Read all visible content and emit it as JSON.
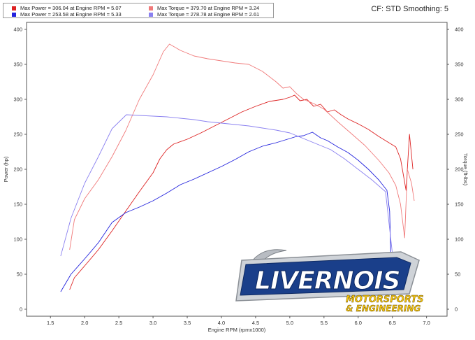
{
  "header": {
    "cf_label": "CF: STD Smoothing: 5"
  },
  "legend": [
    {
      "text": "Max Power = 306.04 at Engine RPM = 5.07",
      "color": "#dd2222"
    },
    {
      "text": "Max Power = 253.58 at Engine RPM = 5.33",
      "color": "#2222dd"
    },
    {
      "text": "Max Torque = 379.70 at Engine RPM = 3.24",
      "color": "#f07a7a"
    },
    {
      "text": "Max Torque = 278.78 at Engine RPM = 2.61",
      "color": "#8a80f0"
    }
  ],
  "watermark": {
    "line1": "LIVERNOIS",
    "line2": "MOTORSPORTS",
    "line3": "& ENGINEERING"
  },
  "chart_data": {
    "type": "line",
    "xlabel": "Engine RPM (rpmx1000)",
    "ylabel": "Power (hp)",
    "y2label": "Torque (ft-lbs)",
    "xlim": [
      1.15,
      7.3
    ],
    "ylim": [
      -10,
      410
    ],
    "y2lim": [
      -10,
      410
    ],
    "x_ticks": [
      "1.5",
      "2.0",
      "2.5",
      "3.0",
      "3.5",
      "4.0",
      "4.5",
      "5.0",
      "5.5",
      "6.0",
      "6.5",
      "7.0"
    ],
    "y_ticks": [
      "0",
      "50",
      "100",
      "150",
      "200",
      "250",
      "300",
      "350",
      "400"
    ],
    "y2_ticks": [
      "0",
      "50",
      "100",
      "150",
      "200",
      "250",
      "300",
      "350",
      "400"
    ],
    "grid": false,
    "series": [
      {
        "name": "Max Power = 306.04 at Engine RPM = 5.07",
        "axis": "left",
        "color": "#dd2222",
        "x": [
          1.78,
          1.85,
          2.0,
          2.2,
          2.4,
          2.6,
          2.8,
          3.0,
          3.1,
          3.2,
          3.3,
          3.5,
          3.7,
          3.9,
          4.1,
          4.3,
          4.5,
          4.7,
          4.9,
          5.0,
          5.07,
          5.15,
          5.25,
          5.35,
          5.45,
          5.55,
          5.65,
          5.75,
          5.85,
          6.0,
          6.15,
          6.3,
          6.45,
          6.55,
          6.62,
          6.7,
          6.75,
          6.8
        ],
        "y": [
          28,
          45,
          62,
          85,
          112,
          140,
          168,
          195,
          215,
          228,
          236,
          243,
          252,
          262,
          272,
          282,
          290,
          297,
          300,
          303,
          306,
          298,
          300,
          290,
          293,
          282,
          285,
          278,
          272,
          265,
          257,
          247,
          238,
          232,
          215,
          170,
          250,
          200
        ]
      },
      {
        "name": "Max Power = 253.58 at Engine RPM = 5.33",
        "axis": "left",
        "color": "#2222dd",
        "x": [
          1.65,
          1.8,
          2.0,
          2.2,
          2.4,
          2.6,
          2.8,
          3.0,
          3.2,
          3.4,
          3.6,
          3.8,
          4.0,
          4.2,
          4.4,
          4.6,
          4.8,
          5.0,
          5.1,
          5.2,
          5.33,
          5.45,
          5.55,
          5.7,
          5.85,
          6.0,
          6.15,
          6.3,
          6.42,
          6.46,
          6.48
        ],
        "y": [
          25,
          50,
          72,
          95,
          124,
          138,
          146,
          155,
          166,
          178,
          186,
          195,
          204,
          214,
          225,
          233,
          238,
          244,
          247,
          248,
          253,
          245,
          241,
          232,
          224,
          213,
          200,
          185,
          170,
          140,
          70
        ]
      },
      {
        "name": "Max Torque = 379.70 at Engine RPM = 3.24",
        "axis": "right",
        "color": "#f07a7a",
        "x": [
          1.78,
          1.85,
          2.0,
          2.2,
          2.4,
          2.6,
          2.8,
          3.0,
          3.15,
          3.24,
          3.4,
          3.6,
          3.8,
          4.0,
          4.2,
          4.4,
          4.6,
          4.8,
          4.9,
          5.0,
          5.1,
          5.2,
          5.35,
          5.5,
          5.7,
          5.9,
          6.1,
          6.3,
          6.45,
          6.55,
          6.62,
          6.68,
          6.72,
          6.78,
          6.82
        ],
        "y": [
          85,
          128,
          158,
          185,
          218,
          255,
          300,
          335,
          368,
          379,
          370,
          362,
          358,
          355,
          352,
          350,
          340,
          325,
          316,
          318,
          308,
          300,
          294,
          286,
          268,
          251,
          234,
          213,
          195,
          177,
          150,
          102,
          200,
          180,
          155
        ]
      },
      {
        "name": "Max Torque = 278.78 at Engine RPM = 2.61",
        "axis": "right",
        "color": "#8a80f0",
        "x": [
          1.65,
          1.8,
          2.0,
          2.2,
          2.4,
          2.61,
          2.8,
          3.0,
          3.2,
          3.4,
          3.6,
          3.8,
          4.0,
          4.2,
          4.4,
          4.6,
          4.8,
          5.0,
          5.2,
          5.4,
          5.6,
          5.8,
          6.0,
          6.2,
          6.4,
          6.5
        ],
        "y": [
          76,
          130,
          180,
          218,
          258,
          278,
          277,
          276,
          275,
          273,
          271,
          268,
          266,
          264,
          262,
          259,
          256,
          252,
          244,
          236,
          228,
          215,
          200,
          185,
          168,
          80
        ]
      }
    ]
  }
}
